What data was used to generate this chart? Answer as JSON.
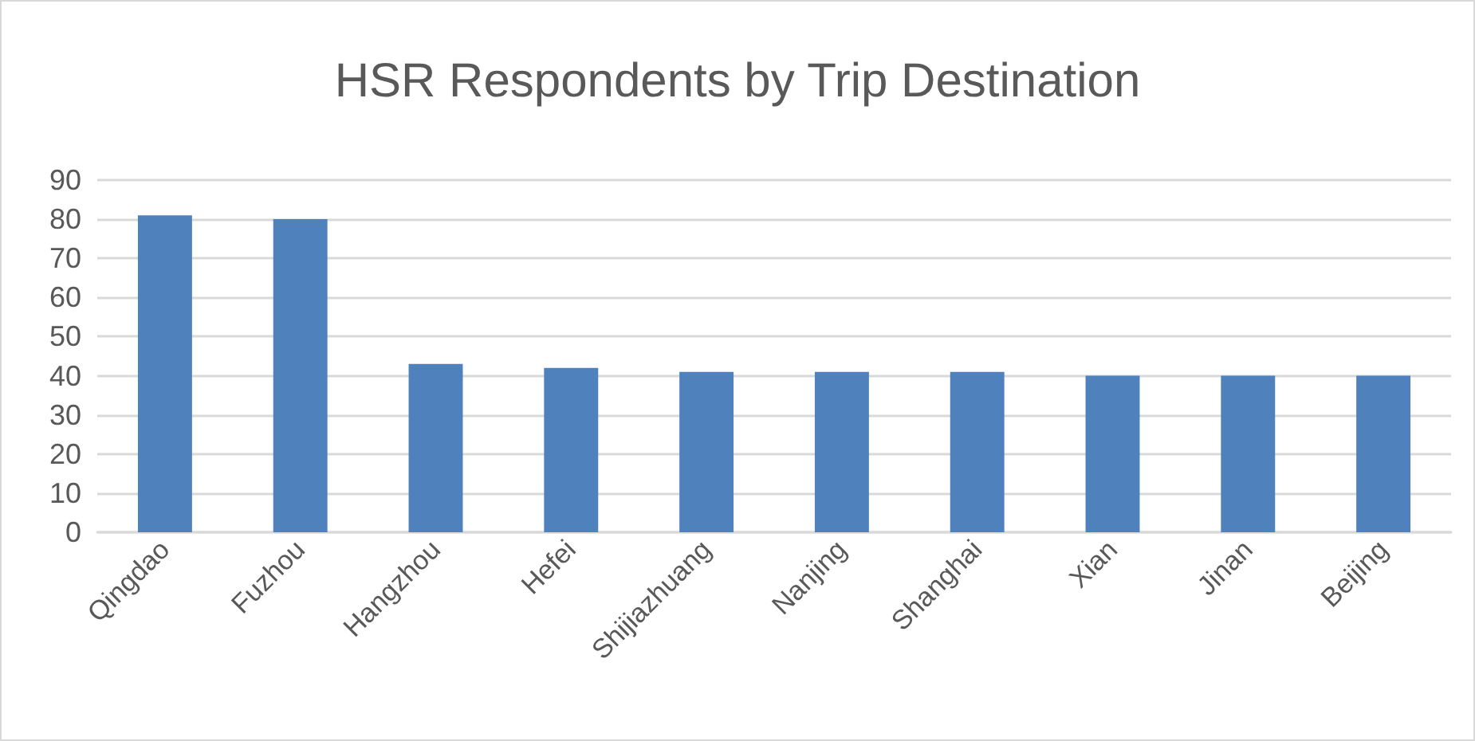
{
  "chart_data": {
    "type": "bar",
    "title": "HSR Respondents by Trip Destination",
    "categories": [
      "Qingdao",
      "Fuzhou",
      "Hangzhou",
      "Hefei",
      "Shijiazhuang",
      "Nanjing",
      "Shanghai",
      "Xian",
      "Jinan",
      "Beijing"
    ],
    "values": [
      81,
      80,
      43,
      42,
      41,
      41,
      41,
      40,
      40,
      40
    ],
    "color": "#4f81bd",
    "ylim": [
      0,
      90
    ],
    "yticks": [
      0,
      10,
      20,
      30,
      40,
      50,
      60,
      70,
      80,
      90
    ],
    "grid": "y"
  }
}
